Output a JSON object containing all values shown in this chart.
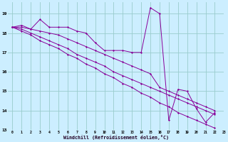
{
  "xlabel": "Windchill (Refroidissement éolien,°C)",
  "background_color": "#cceeff",
  "grid_color": "#99cccc",
  "line_color": "#880099",
  "xlim": [
    -0.5,
    23
  ],
  "ylim": [
    13,
    19.6
  ],
  "yticks": [
    13,
    14,
    15,
    16,
    17,
    18,
    19
  ],
  "xticks": [
    0,
    1,
    2,
    3,
    4,
    5,
    6,
    7,
    8,
    9,
    10,
    11,
    12,
    13,
    14,
    15,
    16,
    17,
    18,
    19,
    20,
    21,
    22,
    23
  ],
  "series": [
    [
      18.3,
      18.4,
      18.2,
      18.7,
      18.3,
      18.3,
      18.3,
      18.1,
      18.0,
      17.5,
      17.1,
      17.1,
      17.1,
      17.0,
      17.0,
      19.3,
      19.0,
      13.5,
      15.1,
      15.0,
      14.1,
      13.4,
      13.9,
      null
    ],
    [
      18.3,
      18.3,
      18.2,
      18.1,
      18.0,
      17.9,
      17.7,
      17.5,
      17.3,
      17.1,
      16.9,
      16.7,
      16.5,
      16.3,
      16.1,
      15.9,
      15.2,
      15.0,
      14.8,
      14.6,
      14.4,
      14.2,
      14.0,
      null
    ],
    [
      18.3,
      18.2,
      18.0,
      17.8,
      17.6,
      17.4,
      17.2,
      16.9,
      16.7,
      16.5,
      16.3,
      16.0,
      15.8,
      15.6,
      15.4,
      15.2,
      15.0,
      14.8,
      14.6,
      14.4,
      14.2,
      14.0,
      13.8,
      null
    ],
    [
      18.3,
      18.1,
      17.9,
      17.6,
      17.4,
      17.2,
      16.9,
      16.7,
      16.4,
      16.2,
      15.9,
      15.7,
      15.4,
      15.2,
      14.9,
      14.7,
      14.4,
      14.2,
      13.9,
      13.7,
      13.5,
      13.3,
      13.1,
      null
    ]
  ]
}
